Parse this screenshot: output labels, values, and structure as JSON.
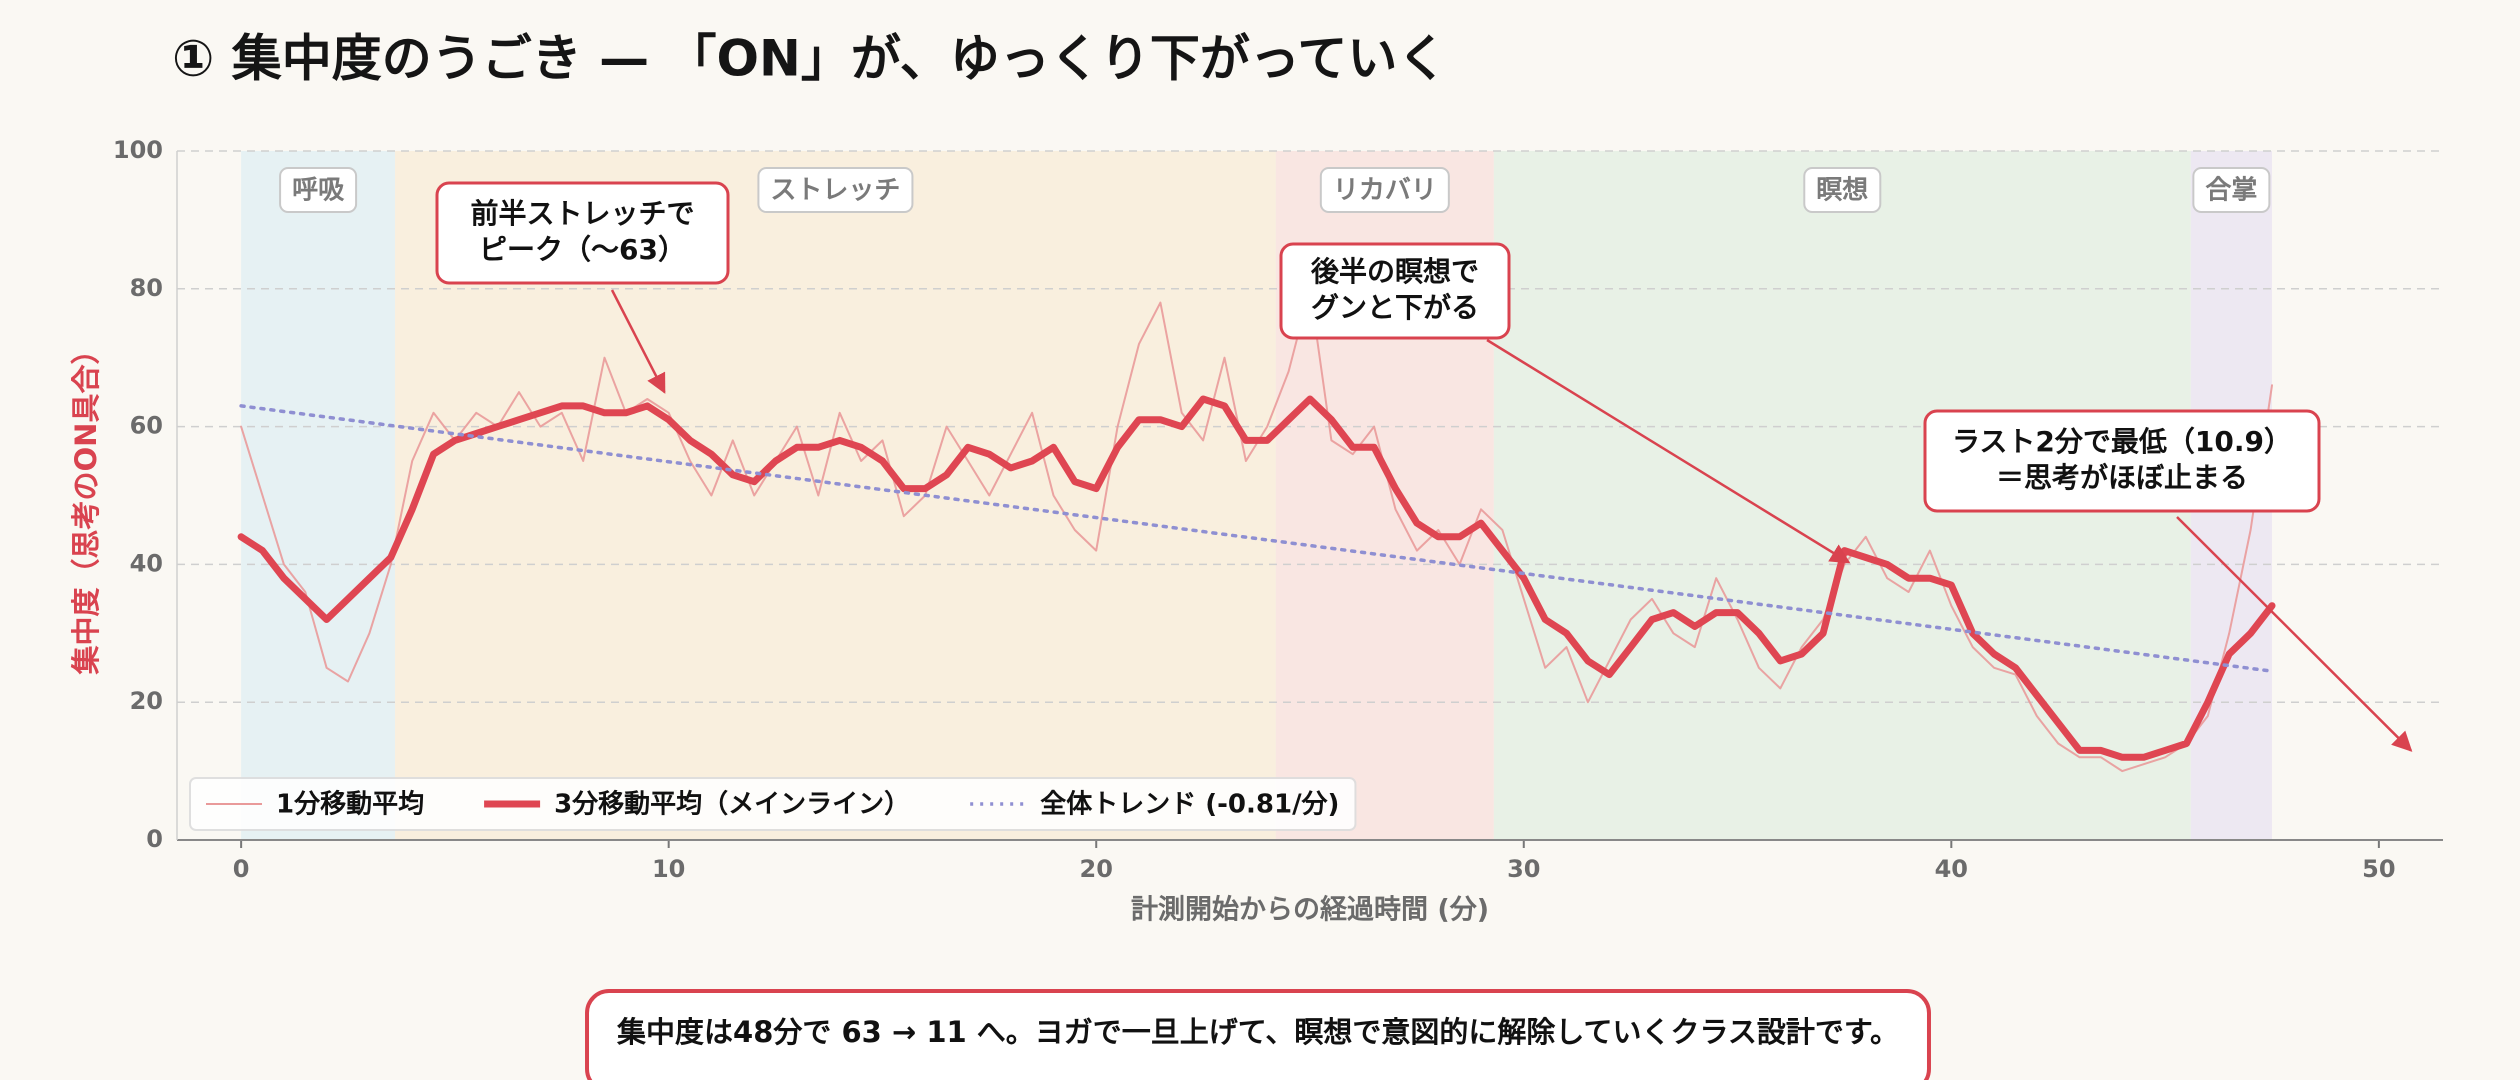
{
  "chart_data": {
    "type": "line",
    "title": "① 集中度のうごき — 「ON」が、ゆっくり下がっていく",
    "x_label": "計測開始からの経過時間 (分)",
    "y_label": "集中度（思考のON具合）",
    "xlim": [
      -1.5,
      51.5
    ],
    "ylim": [
      0,
      100
    ],
    "xticks": [
      0,
      10,
      20,
      30,
      40,
      50
    ],
    "yticks": [
      0,
      20,
      40,
      60,
      80,
      100
    ],
    "grid": true,
    "legend": "lower left",
    "phases": [
      {
        "label": "呼吸",
        "start": 0,
        "end": 3.6,
        "color": "#e3eff3"
      },
      {
        "label": "ストレッチ",
        "start": 3.6,
        "end": 24.2,
        "color": "#f8eddc"
      },
      {
        "label": "リカバリ",
        "start": 24.2,
        "end": 29.3,
        "color": "#f8e3e0"
      },
      {
        "label": "瞑想",
        "start": 29.3,
        "end": 45.6,
        "color": "#e6efe4"
      },
      {
        "label": "合掌",
        "start": 45.6,
        "end": 47.5,
        "color": "#ebe6f2"
      }
    ],
    "x": [
      0,
      0.5,
      1,
      1.5,
      2,
      2.5,
      3,
      3.5,
      4,
      4.5,
      5,
      5.5,
      6,
      6.5,
      7,
      7.5,
      8,
      8.5,
      9,
      9.5,
      10,
      10.5,
      11,
      11.5,
      12,
      12.5,
      13,
      13.5,
      14,
      14.5,
      15,
      15.5,
      16,
      16.5,
      17,
      17.5,
      18,
      18.5,
      19,
      19.5,
      20,
      20.5,
      21,
      21.5,
      22,
      22.5,
      23,
      23.5,
      24,
      24.5,
      25,
      25.5,
      26,
      26.5,
      27,
      27.5,
      28,
      28.5,
      29,
      29.5,
      30,
      30.5,
      31,
      31.5,
      32,
      32.5,
      33,
      33.5,
      34,
      34.5,
      35,
      35.5,
      36,
      36.5,
      37,
      37.5,
      38,
      38.5,
      39,
      39.5,
      40,
      40.5,
      41,
      41.5,
      42,
      42.5,
      43,
      43.5,
      44,
      44.5,
      45,
      45.5,
      46,
      46.5,
      47,
      47.5
    ],
    "series": [
      {
        "name": "1分移動平均",
        "color": "#e99a9a",
        "style": "thin",
        "values": [
          60,
          50,
          40,
          36,
          25,
          23,
          30,
          40,
          55,
          62,
          58,
          62,
          60,
          65,
          60,
          62,
          55,
          70,
          62,
          64,
          62,
          55,
          50,
          58,
          50,
          55,
          60,
          50,
          62,
          55,
          58,
          47,
          50,
          60,
          55,
          50,
          56,
          62,
          50,
          45,
          42,
          60,
          72,
          78,
          62,
          58,
          70,
          55,
          60,
          68,
          80,
          58,
          56,
          60,
          48,
          42,
          45,
          40,
          48,
          45,
          35,
          25,
          28,
          20,
          26,
          32,
          35,
          30,
          28,
          38,
          32,
          25,
          22,
          28,
          32,
          40,
          44,
          38,
          36,
          42,
          34,
          28,
          25,
          24,
          18,
          14,
          12,
          12,
          10,
          11,
          12,
          14,
          18,
          30,
          45,
          66
        ]
      },
      {
        "name": "3分移動平均（メインライン）",
        "color": "#df4652",
        "style": "thick",
        "values": [
          44,
          42,
          38,
          35,
          32,
          35,
          38,
          41,
          48,
          56,
          58,
          59,
          60,
          61,
          62,
          63,
          63,
          62,
          62,
          63,
          61,
          58,
          56,
          53,
          52,
          55,
          57,
          57,
          58,
          57,
          55,
          51,
          51,
          53,
          57,
          56,
          54,
          55,
          57,
          52,
          51,
          57,
          61,
          61,
          60,
          64,
          63,
          58,
          58,
          61,
          64,
          61,
          57,
          57,
          51,
          46,
          44,
          44,
          46,
          42,
          38,
          32,
          30,
          26,
          24,
          28,
          32,
          33,
          31,
          33,
          33,
          30,
          26,
          27,
          30,
          42,
          41,
          40,
          38,
          38,
          37,
          30,
          27,
          25,
          21,
          17,
          13,
          13,
          12,
          12,
          13,
          14,
          20,
          27,
          30,
          34
        ]
      },
      {
        "name": "全体トレンド (-0.81/分)",
        "color": "#8f8fd2",
        "style": "dotted",
        "x": [
          0,
          47.5
        ],
        "values": [
          63,
          24.5
        ]
      }
    ],
    "annotations": [
      {
        "text": [
          "前半ストレッチで",
          "ピーク（〜63）"
        ]
      },
      {
        "text": [
          "後半の瞑想で",
          "グンと下がる"
        ]
      },
      {
        "text": [
          "ラスト2分で最低（10.9）",
          "＝思考がほぼ止まる"
        ]
      }
    ],
    "footnote": "集中度は48分で 63 → 11 へ。ヨガで一旦上げて、瞑想で意図的に解除していくクラス設計です。"
  }
}
